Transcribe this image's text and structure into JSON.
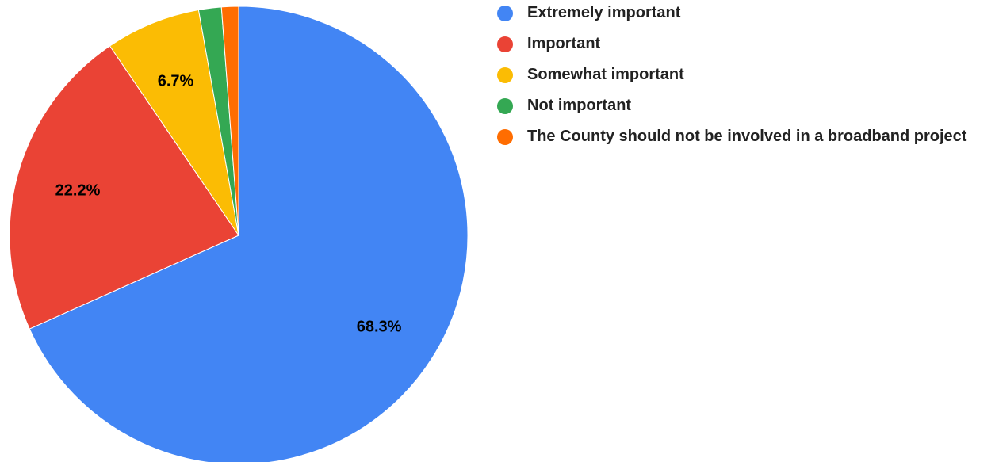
{
  "chart_data": {
    "type": "pie",
    "title": "",
    "start_angle_deg": 0,
    "direction": "clockwise",
    "legend_position": "right",
    "slices": [
      {
        "name": "Extremely important",
        "value": 68.3,
        "label": "68.3%",
        "color": "#4285F4"
      },
      {
        "name": "Important",
        "value": 22.2,
        "label": "22.2%",
        "color": "#EA4335"
      },
      {
        "name": "Somewhat important",
        "value": 6.7,
        "label": "6.7%",
        "color": "#FBBC04"
      },
      {
        "name": "Not important",
        "value": 1.6,
        "label": "",
        "color": "#34A853"
      },
      {
        "name": "The County should not be involved in a broadband project",
        "value": 1.2,
        "label": "",
        "color": "#FF6D01"
      }
    ]
  }
}
